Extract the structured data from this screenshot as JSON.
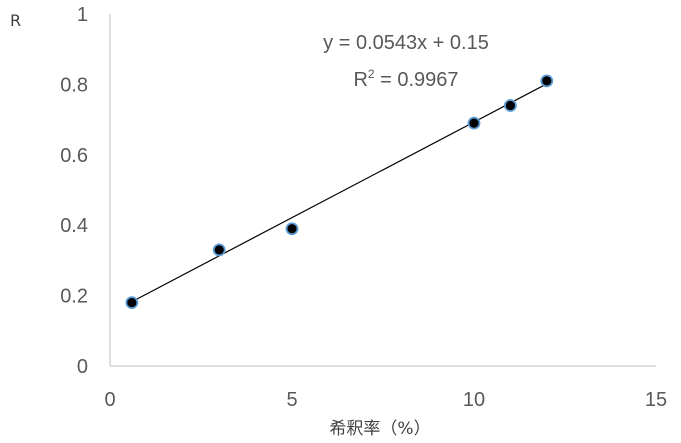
{
  "chart_data": {
    "type": "scatter",
    "title": "",
    "xlabel": "希釈率（%）",
    "ylabel": "R",
    "xlim": [
      0,
      15
    ],
    "ylim": [
      0,
      1
    ],
    "xticks": [
      "0",
      "5",
      "10",
      "15"
    ],
    "yticks": [
      "0",
      "0.2",
      "0.4",
      "0.6",
      "0.8",
      "1"
    ],
    "grid": false,
    "points": [
      {
        "x": 0.6,
        "y": 0.18
      },
      {
        "x": 3.0,
        "y": 0.33
      },
      {
        "x": 5.0,
        "y": 0.39
      },
      {
        "x": 10.0,
        "y": 0.69
      },
      {
        "x": 11.0,
        "y": 0.74
      },
      {
        "x": 12.0,
        "y": 0.81
      }
    ],
    "trendline": {
      "type": "linear",
      "slope": 0.0543,
      "intercept": 0.15,
      "x_range": [
        0.6,
        12.0
      ],
      "equation": "y = 0.0543x + 0.15",
      "r2_prefix": "R",
      "r2_sup": "2",
      "r2_value": " = 0.9967"
    },
    "colors": {
      "marker_fill": "#000000",
      "marker_stroke": "#5b9bd5",
      "line": "#000000",
      "axis": "#bfbfbf"
    }
  }
}
